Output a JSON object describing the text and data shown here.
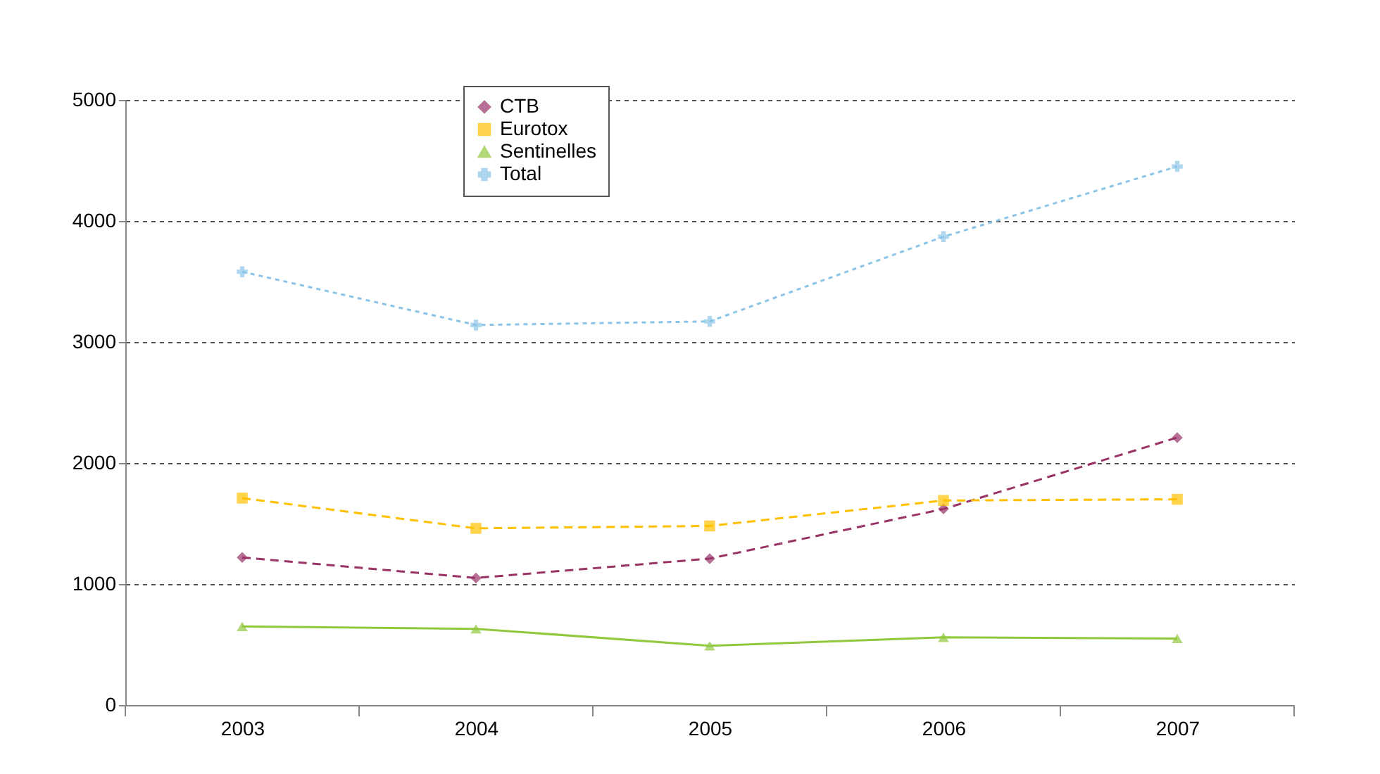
{
  "chart_data": {
    "type": "line",
    "categories": [
      "2003",
      "2004",
      "2005",
      "2006",
      "2007"
    ],
    "series": [
      {
        "name": "CTB",
        "color": "#993366",
        "marker": "diamond",
        "line_style": "dashed",
        "values": [
          1220,
          1050,
          1210,
          1620,
          2210
        ]
      },
      {
        "name": "Eurotox",
        "color": "#ffc000",
        "marker": "square",
        "line_style": "dashed",
        "values": [
          1710,
          1460,
          1480,
          1690,
          1700
        ]
      },
      {
        "name": "Sentinelles",
        "color": "#92c83e",
        "marker": "triangle",
        "line_style": "solid",
        "values": [
          650,
          630,
          490,
          560,
          550
        ]
      },
      {
        "name": "Total",
        "color": "#8cc4e8",
        "marker": "cross",
        "line_style": "dotted",
        "values": [
          3580,
          3140,
          3170,
          3870,
          4450
        ]
      }
    ],
    "ylim": [
      0,
      5000
    ],
    "yticks": [
      0,
      1000,
      2000,
      3000,
      4000,
      5000
    ],
    "grid": "y",
    "legend": "top left"
  }
}
